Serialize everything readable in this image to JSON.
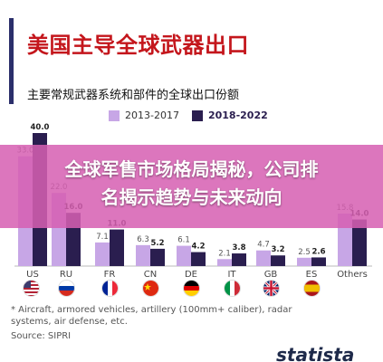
{
  "title": "美国主导全球武器出口",
  "subtitle": "主要常规武器系统和部件的全球出口份额",
  "legend": [
    {
      "label": "2013-2017",
      "color": "#c7a6e6"
    },
    {
      "label": "2018-2022",
      "color": "#2a1e4f"
    }
  ],
  "chart_data": {
    "type": "bar",
    "categories": [
      "US",
      "RU",
      "FR",
      "CN",
      "DE",
      "IT",
      "GB",
      "ES",
      "Others"
    ],
    "series": [
      {
        "name": "2013-2017",
        "color": "#c7a6e6",
        "values": [
          33.0,
          22.0,
          7.1,
          6.3,
          6.1,
          2.1,
          4.7,
          2.5,
          15.8
        ]
      },
      {
        "name": "2018-2022",
        "color": "#2a1e4f",
        "values": [
          40.0,
          16.0,
          11.0,
          5.2,
          4.2,
          3.8,
          3.2,
          2.6,
          14.0
        ]
      }
    ],
    "value_labels": [
      [
        "33.0",
        "22.0",
        "7.1",
        "6.3",
        "6.1",
        "2.1",
        "4.7",
        "2.5",
        "15.8"
      ],
      [
        "40.0",
        "16.0",
        "11.0",
        "5.2",
        "4.2",
        "3.8",
        "3.2",
        "2.6",
        "14.0"
      ]
    ],
    "ylim": [
      0,
      40
    ],
    "grid": false
  },
  "flags": [
    "us-flag-icon",
    "ru-flag-icon",
    "fr-flag-icon",
    "cn-flag-icon",
    "de-flag-icon",
    "it-flag-icon",
    "gb-flag-icon",
    "es-flag-icon"
  ],
  "footnote": "* Aircraft, armored vehicles, artillery (100mm+ caliber), radar systems, air defense, etc.",
  "source": "Source: SIPRI",
  "brand": "statista",
  "banner": {
    "line1": "全球军售市场格局揭秘，公司排",
    "line2": "名揭示趋势与未来动向"
  }
}
